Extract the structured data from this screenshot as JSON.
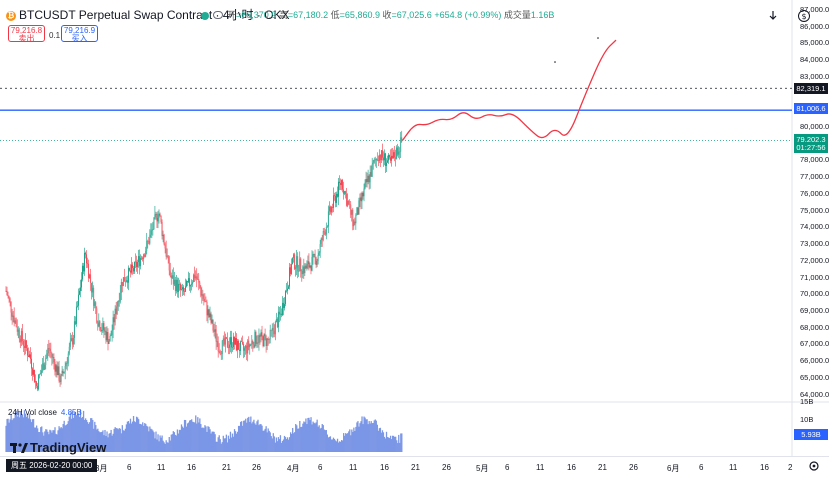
{
  "header": {
    "symbol_title": "BTCUSDT Perpetual Swap Contract · 4小时 · OKX",
    "ohlc": {
      "open_label": "开",
      "open_value": "=66,370.9",
      "high_label": "高",
      "high_value": "=67,180.2",
      "low_label": "低",
      "low_value": "=65,860.9",
      "close_label": "收",
      "close_value": "=67,025.6",
      "change": "+654.8 (+0.99%)",
      "volume_label": "成交量",
      "volume_value": "1.16B"
    },
    "icons": [
      "bitcoin-icon",
      "status-dot-icon",
      "eye-icon",
      "download-icon",
      "dollar-icon"
    ]
  },
  "trade": {
    "sell_price": "79,216.8",
    "sell_label": "卖出",
    "spread": "0.1",
    "buy_price": "79,216.9",
    "buy_label": "买入"
  },
  "price_axis": {
    "ticks": [
      "87,000.0",
      "86,000.0",
      "85,000.0",
      "84,000.0",
      "83,000.0",
      "80,000.0",
      "78,000.0",
      "77,000.0",
      "76,000.0",
      "75,000.0",
      "74,000.0",
      "73,000.0",
      "72,000.0",
      "71,000.0",
      "70,000.0",
      "69,000.0",
      "68,000.0",
      "67,000.0",
      "66,000.0",
      "65,000.0",
      "64,000.0"
    ],
    "tag_dashed": "82,319.1",
    "tag_line": "81,006.6",
    "tag_last_price": "79,202.3",
    "tag_countdown": "01:27:56",
    "colors": {
      "line": "#2962ff",
      "last": "#089981",
      "dashed": "#131722"
    }
  },
  "volume_axis": {
    "ticks": [
      "15B",
      "10B"
    ],
    "tag": "5.93B"
  },
  "volume_pane": {
    "label": "24H Vol close",
    "value": "4.85B"
  },
  "time_axis": {
    "labels": [
      "3月",
      "6",
      "11",
      "16",
      "21",
      "26",
      "4月",
      "6",
      "11",
      "16",
      "21",
      "26",
      "5月",
      "6",
      "11",
      "16",
      "21",
      "26",
      "6月",
      "6",
      "11",
      "16",
      "2"
    ],
    "cursor_date": "周五  2026-02-20   00:00"
  },
  "branding": {
    "logo_text": "TradingView"
  },
  "chart_data": {
    "type": "candlestick",
    "symbol": "BTCUSDT",
    "interval": "4小时",
    "exchange": "OKX",
    "ylim": [
      63500,
      87000
    ],
    "horizontal_lines": [
      {
        "value": 81006.6,
        "style": "solid",
        "color": "#2962ff"
      },
      {
        "value": 82319.1,
        "style": "dashed",
        "color": "#131722"
      }
    ],
    "last_price": 79202.3,
    "close_trend": [
      [
        "2026-02-20",
        70200
      ],
      [
        "2026-02-22",
        67800
      ],
      [
        "2026-02-24",
        66200
      ],
      [
        "2026-02-25",
        64500
      ],
      [
        "2026-02-27",
        66800
      ],
      [
        "2026-03-01",
        64800
      ],
      [
        "2026-03-03",
        67500
      ],
      [
        "2026-03-05",
        72500
      ],
      [
        "2026-03-07",
        68500
      ],
      [
        "2026-03-09",
        67200
      ],
      [
        "2026-03-11",
        70800
      ],
      [
        "2026-03-13",
        71500
      ],
      [
        "2026-03-15",
        72800
      ],
      [
        "2026-03-17",
        75000
      ],
      [
        "2026-03-19",
        71000
      ],
      [
        "2026-03-21",
        70000
      ],
      [
        "2026-03-23",
        71200
      ],
      [
        "2026-03-25",
        69000
      ],
      [
        "2026-03-27",
        66800
      ],
      [
        "2026-03-29",
        67200
      ],
      [
        "2026-03-31",
        66600
      ],
      [
        "2026-04-02",
        67400
      ],
      [
        "2026-04-04",
        67200
      ],
      [
        "2026-04-06",
        68800
      ],
      [
        "2026-04-08",
        72000
      ],
      [
        "2026-04-10",
        71500
      ],
      [
        "2026-04-12",
        72200
      ],
      [
        "2026-04-14",
        74800
      ],
      [
        "2026-04-16",
        76800
      ],
      [
        "2026-04-18",
        74200
      ],
      [
        "2026-04-20",
        76500
      ],
      [
        "2026-04-22",
        78400
      ],
      [
        "2026-04-24",
        77800
      ],
      [
        "2026-04-26",
        79200
      ]
    ],
    "projection_path": [
      [
        "2026-04-26",
        79200
      ],
      [
        "2026-04-28",
        80200
      ],
      [
        "2026-04-30",
        80100
      ],
      [
        "2026-05-02",
        80500
      ],
      [
        "2026-05-04",
        80400
      ],
      [
        "2026-05-06",
        81000
      ],
      [
        "2026-05-08",
        80400
      ],
      [
        "2026-05-10",
        80800
      ],
      [
        "2026-05-12",
        80600
      ],
      [
        "2026-05-14",
        80900
      ],
      [
        "2026-05-17",
        79800
      ],
      [
        "2026-05-19",
        79200
      ],
      [
        "2026-05-21",
        80000
      ],
      [
        "2026-05-23",
        79200
      ],
      [
        "2026-05-26",
        82000
      ],
      [
        "2026-05-29",
        84500
      ],
      [
        "2026-05-31",
        85200
      ]
    ],
    "volume_24h_close": 4.85,
    "volume_unit": "B"
  }
}
